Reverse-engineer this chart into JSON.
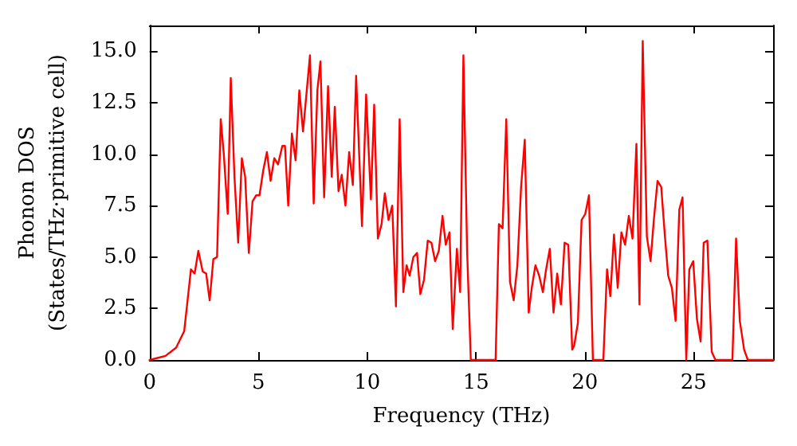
{
  "chart_data": {
    "type": "line",
    "xlabel": "Frequency (THz)",
    "ylabel": "Phonon DOS\n(States/THz·primitive cell)",
    "xlim": [
      0,
      28.65
    ],
    "xticks": [
      0,
      5,
      10,
      15,
      20,
      25
    ],
    "ylim": [
      0,
      16.25
    ],
    "yticks": [
      {
        "value": 0,
        "label": "0.0"
      },
      {
        "value": 2.5,
        "label": "2.5"
      },
      {
        "value": 5,
        "label": "5.0"
      },
      {
        "value": 7.5,
        "label": "7.5"
      },
      {
        "value": 10,
        "label": "10.0"
      },
      {
        "value": 12.5,
        "label": "12.5"
      },
      {
        "value": 15,
        "label": "15.0"
      }
    ],
    "grid": false,
    "marker": "none",
    "line_style": "solid",
    "series": [
      {
        "color": "#ff0000",
        "x": [
          0,
          0.73,
          1.22,
          1.59,
          1.9,
          2.07,
          2.24,
          2.44,
          2.6,
          2.76,
          2.93,
          3.1,
          3.27,
          3.41,
          3.59,
          3.73,
          3.9,
          4.07,
          4.24,
          4.39,
          4.56,
          4.73,
          4.9,
          5.05,
          5.22,
          5.39,
          5.56,
          5.73,
          5.9,
          6.1,
          6.22,
          6.37,
          6.54,
          6.71,
          6.88,
          7.05,
          7.37,
          7.54,
          7.71,
          7.85,
          8.02,
          8.2,
          8.37,
          8.51,
          8.68,
          8.83,
          9.0,
          9.17,
          9.34,
          9.49,
          9.76,
          9.95,
          10.17,
          10.32,
          10.49,
          10.66,
          10.81,
          10.98,
          11.15,
          11.32,
          11.49,
          11.66,
          11.81,
          11.95,
          12.12,
          12.29,
          12.44,
          12.61,
          12.78,
          12.95,
          13.12,
          13.29,
          13.46,
          13.61,
          13.78,
          13.93,
          14.12,
          14.27,
          14.42,
          14.59,
          14.76,
          15.9,
          16.05,
          16.22,
          16.39,
          16.56,
          16.73,
          16.9,
          17.07,
          17.24,
          17.42,
          17.56,
          17.73,
          17.9,
          18.07,
          18.22,
          18.39,
          18.56,
          18.73,
          18.9,
          19.07,
          19.24,
          19.42,
          19.51,
          19.68,
          19.85,
          20.02,
          20.19,
          20.37,
          20.85,
          21.02,
          21.17,
          21.34,
          21.51,
          21.68,
          21.85,
          22.02,
          22.19,
          22.37,
          22.51,
          22.66,
          22.85,
          23.02,
          23.17,
          23.34,
          23.51,
          23.68,
          23.83,
          24.0,
          24.17,
          24.34,
          24.49,
          24.66,
          24.8,
          24.98,
          25.15,
          25.32,
          25.46,
          25.63,
          25.83,
          26.0,
          26.78,
          26.95,
          27.12,
          27.32,
          27.49,
          28.65
        ],
        "values": [
          0,
          0.2,
          0.6,
          1.4,
          4.4,
          4.2,
          5.3,
          4.3,
          4.2,
          2.9,
          4.9,
          5.0,
          11.7,
          10.0,
          7.1,
          13.7,
          8.9,
          5.7,
          9.8,
          8.9,
          5.2,
          7.7,
          8.0,
          8.0,
          9.2,
          10.1,
          8.7,
          9.8,
          9.5,
          10.4,
          10.4,
          7.5,
          11.0,
          9.7,
          13.1,
          11.1,
          14.8,
          7.6,
          13.1,
          14.5,
          7.9,
          13.3,
          8.9,
          12.3,
          8.2,
          9.0,
          7.5,
          10.1,
          8.5,
          13.8,
          6.5,
          12.9,
          7.8,
          12.4,
          5.9,
          6.6,
          8.1,
          6.8,
          7.5,
          2.6,
          11.7,
          3.3,
          4.6,
          4.1,
          5.0,
          5.2,
          3.2,
          3.9,
          5.8,
          5.7,
          4.8,
          5.3,
          7.0,
          5.6,
          6.2,
          1.5,
          5.4,
          3.3,
          14.8,
          5.3,
          0,
          0,
          6.6,
          6.4,
          11.7,
          3.8,
          2.9,
          4.6,
          8.4,
          10.7,
          2.3,
          3.5,
          4.6,
          4.1,
          3.3,
          4.4,
          5.4,
          2.3,
          4.2,
          2.7,
          5.7,
          5.6,
          0.5,
          0.7,
          1.8,
          6.8,
          7.1,
          8.0,
          0,
          0,
          4.4,
          3.1,
          6.1,
          3.5,
          6.2,
          5.6,
          7.0,
          5.9,
          10.5,
          2.7,
          15.5,
          6.0,
          4.8,
          6.8,
          8.7,
          8.4,
          6.0,
          4.1,
          3.5,
          1.9,
          7.3,
          7.9,
          0,
          4.4,
          4.8,
          2.0,
          0.9,
          5.7,
          5.8,
          0.4,
          0,
          0,
          5.9,
          1.9,
          0.5,
          0,
          0
        ]
      }
    ]
  }
}
